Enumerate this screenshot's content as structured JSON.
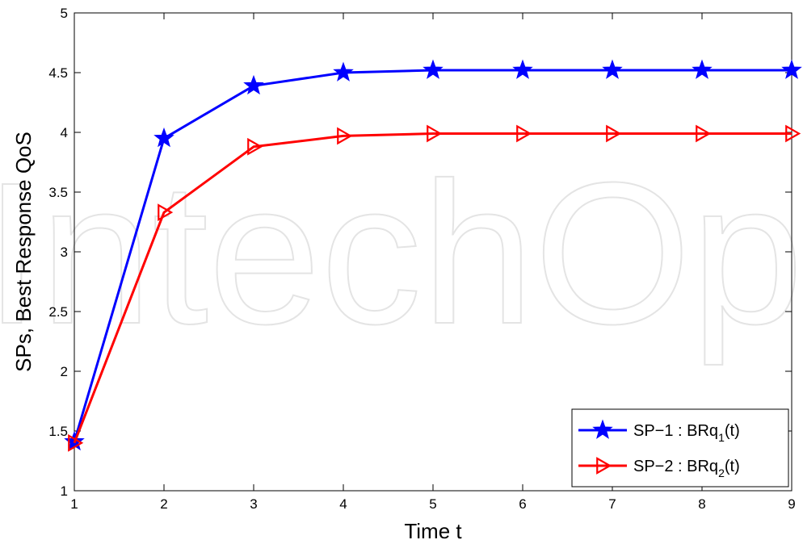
{
  "chart_data": {
    "type": "line",
    "title": "",
    "xlabel": "Time t",
    "ylabel": "SPs, Best Response QoS",
    "x": [
      1,
      2,
      3,
      4,
      5,
      6,
      7,
      8,
      9
    ],
    "xlim": [
      1,
      9
    ],
    "ylim": [
      1,
      5
    ],
    "xticks": [
      "1",
      "2",
      "3",
      "4",
      "5",
      "6",
      "7",
      "8",
      "9"
    ],
    "yticks": [
      "1",
      "1.5",
      "2",
      "2.5",
      "3",
      "3.5",
      "4",
      "4.5",
      "5"
    ],
    "grid": false,
    "legend_position": "bottom-right",
    "watermark": "IntechOpen",
    "series": [
      {
        "name": "SP−1 : BRq1(t)",
        "label_main": "SP−1 : BRq",
        "label_sub": "1",
        "label_tail": "(t)",
        "color": "#0000ff",
        "marker": "star",
        "values": [
          1.41,
          3.95,
          4.39,
          4.5,
          4.52,
          4.52,
          4.52,
          4.52,
          4.52
        ]
      },
      {
        "name": "SP−2 : BRq2(t)",
        "label_main": "SP−2 : BRq",
        "label_sub": "2",
        "label_tail": "(t)",
        "color": "#ff0000",
        "marker": "triangle-right",
        "values": [
          1.4,
          3.33,
          3.88,
          3.97,
          3.99,
          3.99,
          3.99,
          3.99,
          3.99
        ]
      }
    ]
  }
}
